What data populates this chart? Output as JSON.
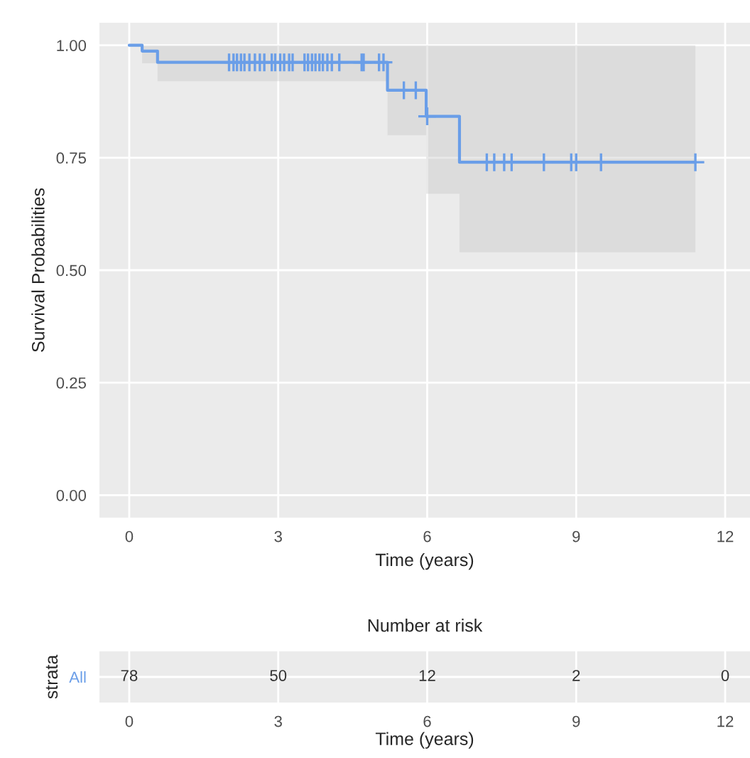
{
  "chart_data": [
    {
      "type": "step",
      "xlabel": "Time (years)",
      "ylabel": "Survival Probabilities",
      "xlim": [
        -0.6,
        12.5
      ],
      "ylim": [
        -0.05,
        1.05
      ],
      "xticks": [
        0,
        3,
        6,
        9,
        12
      ],
      "yticks": [
        {
          "value": 0,
          "label": "0.00"
        },
        {
          "value": 0.25,
          "label": "0.25"
        },
        {
          "value": 0.5,
          "label": "0.50"
        },
        {
          "value": 0.75,
          "label": "0.75"
        },
        {
          "value": 1,
          "label": "1.00"
        }
      ],
      "grid": true,
      "legend": false,
      "series": [
        {
          "type": "step",
          "color": "#6a9ee8",
          "x": [
            0,
            0.26,
            0.57,
            5.2,
            5.98,
            6.65,
            11.4
          ],
          "values": [
            1.0,
            0.987,
            0.962,
            0.9,
            0.842,
            0.74,
            0.74
          ],
          "lower": [
            1.0,
            0.96,
            0.92,
            0.8,
            0.67,
            0.54,
            0.54
          ],
          "upper": [
            1.0,
            1.0,
            1.0,
            1.0,
            1.0,
            1.0,
            1.0
          ]
        },
        {
          "type": "scatter",
          "marker": "cross",
          "color": "#6a9ee8",
          "x": [
            2.01,
            2.1,
            2.17,
            2.25,
            2.32,
            2.42,
            2.53,
            2.63,
            2.72,
            2.87,
            2.94,
            3.04,
            3.12,
            3.22,
            3.29,
            3.53,
            3.6,
            3.68,
            3.75,
            3.83,
            3.9,
            3.99,
            4.08,
            4.23,
            4.68,
            4.72,
            5.03,
            5.12,
            5.53,
            5.77,
            6.0,
            7.2,
            7.35,
            7.55,
            7.7,
            8.35,
            8.9,
            9.0,
            9.5,
            11.4
          ],
          "values": [
            0.962,
            0.962,
            0.962,
            0.962,
            0.962,
            0.962,
            0.962,
            0.962,
            0.962,
            0.962,
            0.962,
            0.962,
            0.962,
            0.962,
            0.962,
            0.962,
            0.962,
            0.962,
            0.962,
            0.962,
            0.962,
            0.962,
            0.962,
            0.962,
            0.962,
            0.962,
            0.962,
            0.962,
            0.9,
            0.9,
            0.842,
            0.74,
            0.74,
            0.74,
            0.74,
            0.74,
            0.74,
            0.74,
            0.74,
            0.74
          ]
        }
      ]
    },
    {
      "type": "heatmap",
      "title": "Number at risk",
      "xlabel": "Time (years)",
      "ylabel": "strata",
      "categories": [
        "0",
        "3",
        "6",
        "9",
        "12"
      ],
      "y_categories": [
        "All"
      ],
      "cells": [
        [
          78,
          50,
          12,
          2,
          0
        ]
      ],
      "grid": true,
      "data_labels": true
    }
  ]
}
